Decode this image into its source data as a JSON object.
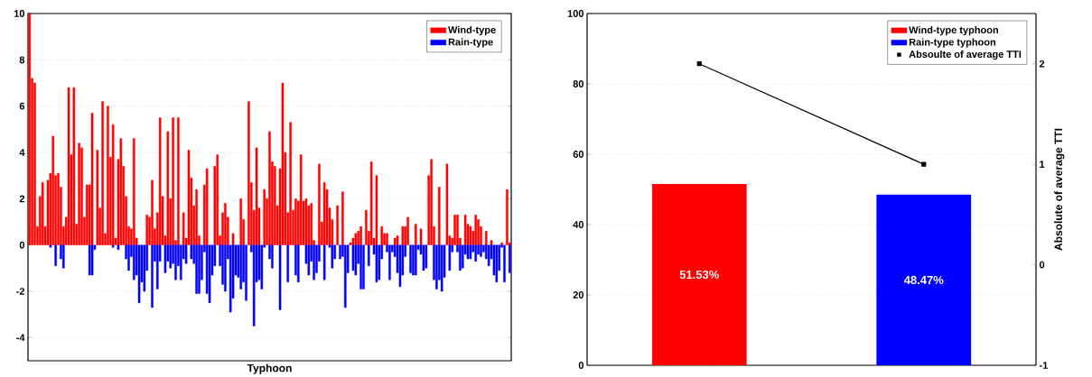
{
  "chart_data": [
    {
      "type": "bar",
      "xlabel": "Typhoon",
      "ylim": [
        -5,
        10
      ],
      "yticks": [
        -4,
        -2,
        0,
        2,
        4,
        6,
        8,
        10
      ],
      "grid": "y",
      "legend": "top right",
      "categories": [
        null,
        null,
        null,
        null,
        null,
        null,
        null,
        null,
        null,
        null,
        null,
        null,
        null,
        null,
        null,
        null,
        null,
        null,
        null,
        null,
        null,
        null,
        null,
        null,
        null,
        null,
        null,
        null,
        null,
        null,
        null,
        null,
        null,
        null,
        null,
        null,
        null,
        null,
        null,
        null,
        null,
        null,
        null,
        null,
        null,
        null,
        null,
        null,
        null,
        null,
        null,
        null,
        null,
        null,
        null,
        null,
        null,
        null,
        null,
        null,
        null,
        null,
        null,
        null,
        null,
        null,
        null,
        null,
        null,
        null,
        null,
        null,
        null,
        null,
        null,
        null,
        null,
        null,
        null,
        null,
        null,
        null,
        null,
        null,
        null,
        null,
        null,
        null,
        null,
        null,
        null,
        null,
        null,
        null,
        null,
        null,
        null,
        null,
        null,
        null,
        null,
        null,
        null,
        null,
        null,
        null,
        null,
        null,
        null,
        null,
        null,
        null,
        null,
        null,
        null,
        null,
        null,
        null,
        null,
        null,
        null,
        null,
        null,
        null,
        null,
        null,
        null,
        null,
        null,
        null,
        null,
        null,
        null,
        null,
        null,
        null,
        null,
        null,
        null,
        null,
        null,
        null,
        null,
        null,
        null,
        null,
        null,
        null,
        null,
        null,
        null,
        null,
        null,
        null,
        null,
        null,
        null,
        null,
        null,
        null,
        null,
        null,
        null,
        null,
        null,
        null,
        null,
        null,
        null,
        null,
        null,
        null,
        null,
        null,
        null,
        null,
        null,
        null,
        null,
        null,
        null,
        null,
        null,
        null,
        null
      ],
      "series": [
        {
          "name": "Wind-type",
          "color": "#ff0000",
          "values": [
            10,
            7.2,
            7.0,
            0.8,
            2.1,
            2.7,
            0.8,
            2.8,
            3.1,
            4.7,
            3.0,
            3.1,
            2.5,
            0.8,
            1.2,
            6.8,
            3.9,
            6.8,
            0.9,
            4.4,
            4.2,
            1.2,
            2.6,
            2.6,
            5.7,
            null,
            4.1,
            1.6,
            6.2,
            0.5,
            6.0,
            3.8,
            5.2,
            0.3,
            3.7,
            4.6,
            3.4,
            2.1,
            0.8,
            0.7,
            4.6,
            0.3,
            null,
            null,
            null,
            1.3,
            1.2,
            2.8,
            0.7,
            1.4,
            5.5,
            2.1,
            0.4,
            4.9,
            2.0,
            5.5,
            0.2,
            5.5,
            null,
            1.4,
            0.3,
            4.1,
            2.9,
            1.7,
            2.4,
            0.4,
            null,
            2.6,
            3.3,
            null,
            null,
            3.4,
            3.9,
            0.4,
            1.4,
            1.8,
            1.2,
            null,
            0.5,
            null,
            null,
            2.0,
            1.1,
            null,
            6.2,
            2.7,
            1.5,
            4.2,
            1.6,
            null,
            2.4,
            2.0,
            4.9,
            3.6,
            3.4,
            1.7,
            3.3,
            7.0,
            4.0,
            1.4,
            5.3,
            1.5,
            2.0,
            1.9,
            3.9,
            1.9,
            2.0,
            1.7,
            1.8,
            0.2,
            null,
            3.5,
            1.0,
            2.7,
            2.4,
            1.6,
            1.1,
            null,
            1.7,
            null,
            2.3,
            null,
            null,
            0.1,
            0.3,
            0.5,
            0.6,
            0.8,
            null,
            1.5,
            0.6,
            3.6,
            0.3,
            3.0,
            null,
            0.8,
            0.5,
            0.5,
            null,
            null,
            0.3,
            0.4,
            null,
            0.8,
            0.8,
            1.2,
            null,
            null,
            0.9,
            null,
            0.7,
            null,
            null,
            3.0,
            3.7,
            0.8,
            null,
            2.5,
            null,
            null,
            3.5,
            0.4,
            0.3,
            1.3,
            1.3,
            0.3,
            null,
            1.3,
            0.9,
            0.8,
            0.6,
            1.3,
            1.1,
            0.8,
            null,
            0.6,
            null,
            0.2,
            null,
            null,
            null,
            0.1,
            null,
            2.4,
            0.1
          ]
        },
        {
          "name": "Rain-type",
          "color": "#0000ff",
          "values": [
            null,
            null,
            null,
            null,
            null,
            null,
            null,
            null,
            -0.1,
            null,
            -0.9,
            null,
            -0.6,
            -1.0,
            null,
            null,
            null,
            null,
            null,
            null,
            null,
            null,
            null,
            -1.3,
            -1.3,
            -0.2,
            null,
            null,
            null,
            null,
            null,
            null,
            -0.1,
            null,
            -0.2,
            null,
            null,
            -0.6,
            -1.1,
            -0.5,
            -1.5,
            -1.3,
            -2.5,
            -1.6,
            -2.0,
            -1.1,
            null,
            -2.7,
            -0.7,
            -1.9,
            -0.7,
            null,
            -1.2,
            -0.7,
            -1.0,
            -0.8,
            -1.5,
            -0.9,
            -1.5,
            -0.6,
            -0.8,
            null,
            -0.6,
            -0.8,
            -2.1,
            -2.1,
            -1.5,
            -0.3,
            -2.1,
            -2.5,
            -1.3,
            -0.9,
            null,
            -0.9,
            -1.7,
            -2.0,
            -0.6,
            -2.9,
            -2.3,
            -1.3,
            -1.4,
            -1.9,
            -1.6,
            -2.4,
            null,
            -0.3,
            -3.5,
            -1.6,
            -1.5,
            -1.9,
            -0.1,
            null,
            -0.6,
            -1.0,
            null,
            null,
            -2.8,
            null,
            null,
            -1.6,
            null,
            null,
            -1.3,
            -1.6,
            null,
            null,
            -0.8,
            -1.3,
            -0.7,
            -1.5,
            -1.2,
            -0.7,
            null,
            -1.5,
            null,
            -0.1,
            -1.0,
            -0.6,
            null,
            -0.6,
            -0.5,
            -2.7,
            -1.2,
            null,
            -1.1,
            -1.3,
            -0.8,
            -1.9,
            -1.9,
            null,
            -0.9,
            null,
            -0.4,
            -1.6,
            -1.5,
            -0.6,
            null,
            -0.3,
            -1.5,
            -0.3,
            -0.5,
            -1.2,
            -1.8,
            -1.3,
            -0.5,
            null,
            -1.2,
            -1.3,
            -1.3,
            -0.2,
            -0.4,
            -1.1,
            -1.0,
            null,
            null,
            -1.5,
            -1.9,
            -1.5,
            -2.0,
            -1.4,
            null,
            -1.1,
            -0.3,
            null,
            -0.3,
            -1.1,
            -1.0,
            -0.4,
            -0.6,
            -0.6,
            -0.3,
            -0.7,
            -0.4,
            -0.5,
            -0.3,
            -0.6,
            -0.9,
            -0.6,
            -1.3,
            -1.6,
            -1.1,
            -0.1,
            -1.6,
            null,
            -1.2
          ]
        }
      ]
    },
    {
      "type": "bar",
      "categories": [
        null,
        null
      ],
      "ylim": [
        0,
        100
      ],
      "yticks": [
        0,
        20,
        40,
        60,
        80,
        100
      ],
      "y2lim": [
        -1,
        2.5
      ],
      "y2ticks": [
        -1,
        0,
        1,
        2
      ],
      "y2label": "Absolute of average TTI",
      "grid": "y",
      "legend": "top right",
      "series": [
        {
          "name": "Wind-type typhoon",
          "color": "#ff0000",
          "values": [
            51.53,
            null
          ],
          "value_labels": [
            "51.53%",
            null
          ]
        },
        {
          "name": "Rain-type typhoon",
          "color": "#0000ff",
          "values": [
            null,
            48.47
          ],
          "value_labels": [
            null,
            "48.47%"
          ]
        },
        {
          "name": "Absoulte of average TTI",
          "type": "line",
          "axis": "y2",
          "color": "#000000",
          "marker": "square",
          "line_style": "solid",
          "values": [
            2,
            1
          ]
        }
      ]
    }
  ]
}
